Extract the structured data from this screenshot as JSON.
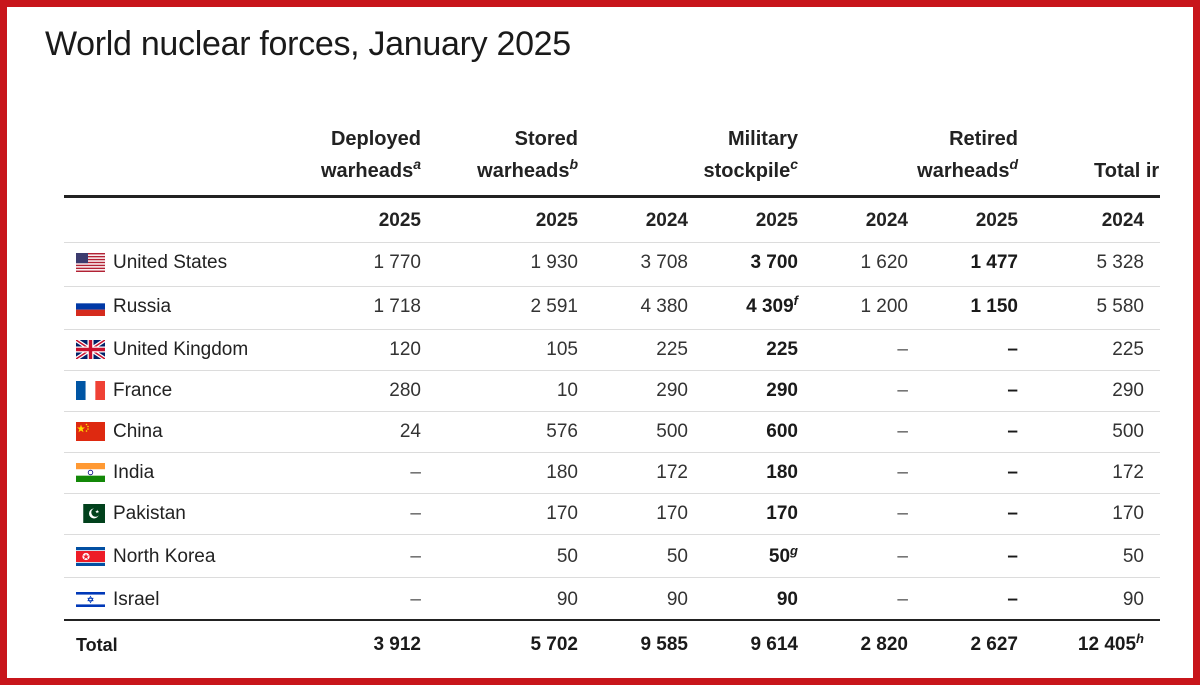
{
  "title": "World nuclear forces, January 2025",
  "groups": [
    {
      "line1": "Deployed",
      "line2": "warheads",
      "note": "a"
    },
    {
      "line1": "Stored",
      "line2": "warheads",
      "note": "b"
    },
    {
      "line1": "Military",
      "line2": "stockpile",
      "note": "c"
    },
    {
      "line1": "Retired",
      "line2": "warheads",
      "note": "d"
    },
    {
      "line1": "",
      "line2": "Total ir",
      "note": ""
    }
  ],
  "years": [
    "2025",
    "2025",
    "2024",
    "2025",
    "2024",
    "2025",
    "2024"
  ],
  "rows": [
    {
      "country": "United States",
      "flag": "us-flag-icon",
      "deployed": "1 770",
      "stored": "1 930",
      "mil2024": "3 708",
      "mil2025": "3 700",
      "mil2025_note": "",
      "ret2024": "1 620",
      "ret2025": "1 477",
      "total2024": "5 328"
    },
    {
      "country": "Russia",
      "flag": "russia-flag-icon",
      "deployed": "1 718",
      "stored": "2 591",
      "mil2024": "4 380",
      "mil2025": "4 309",
      "mil2025_note": "f",
      "ret2024": "1 200",
      "ret2025": "1 150",
      "total2024": "5 580"
    },
    {
      "country": "United Kingdom",
      "flag": "uk-flag-icon",
      "deployed": "120",
      "stored": "105",
      "mil2024": "225",
      "mil2025": "225",
      "mil2025_note": "",
      "ret2024": "–",
      "ret2025": "–",
      "total2024": "225"
    },
    {
      "country": "France",
      "flag": "france-flag-icon",
      "deployed": "280",
      "stored": "10",
      "mil2024": "290",
      "mil2025": "290",
      "mil2025_note": "",
      "ret2024": "–",
      "ret2025": "–",
      "total2024": "290"
    },
    {
      "country": "China",
      "flag": "china-flag-icon",
      "deployed": "24",
      "stored": "576",
      "mil2024": "500",
      "mil2025": "600",
      "mil2025_note": "",
      "ret2024": "–",
      "ret2025": "–",
      "total2024": "500"
    },
    {
      "country": "India",
      "flag": "india-flag-icon",
      "deployed": "–",
      "stored": "180",
      "mil2024": "172",
      "mil2025": "180",
      "mil2025_note": "",
      "ret2024": "–",
      "ret2025": "–",
      "total2024": "172"
    },
    {
      "country": "Pakistan",
      "flag": "pakistan-flag-icon",
      "deployed": "–",
      "stored": "170",
      "mil2024": "170",
      "mil2025": "170",
      "mil2025_note": "",
      "ret2024": "–",
      "ret2025": "–",
      "total2024": "170"
    },
    {
      "country": "North Korea",
      "flag": "north-korea-flag-icon",
      "deployed": "–",
      "stored": "50",
      "mil2024": "50",
      "mil2025": "50",
      "mil2025_note": "g",
      "ret2024": "–",
      "ret2025": "–",
      "total2024": "50"
    },
    {
      "country": "Israel",
      "flag": "israel-flag-icon",
      "deployed": "–",
      "stored": "90",
      "mil2024": "90",
      "mil2025": "90",
      "mil2025_note": "",
      "ret2024": "–",
      "ret2025": "–",
      "total2024": "90"
    }
  ],
  "total": {
    "label": "Total",
    "deployed": "3 912",
    "stored": "5 702",
    "mil2024": "9 585",
    "mil2025": "9 614",
    "ret2024": "2 820",
    "ret2025": "2 627",
    "total2024": "12 405",
    "total2024_note": "h"
  },
  "colors": {
    "frame": "#c8151b",
    "text": "#222222",
    "rule": "#222222",
    "row_divider": "#dcdcdc"
  }
}
